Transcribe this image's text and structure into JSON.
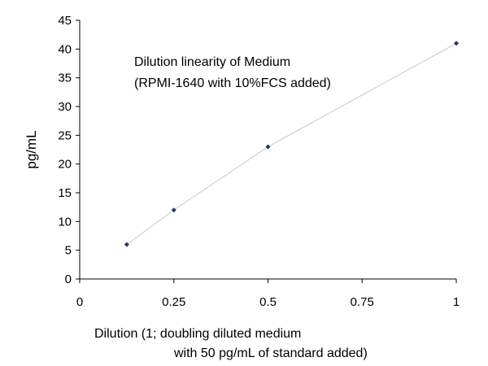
{
  "chart_data": {
    "type": "scatter",
    "annotation": [
      "Dilution linearity of Medium",
      "(RPMI-1640 with 10%FCS added)"
    ],
    "xlabel": [
      "Dilution (1; doubling diluted medium",
      "with 50 pg/mL of standard added)"
    ],
    "ylabel": "pg/mL",
    "xlim": [
      0,
      1
    ],
    "ylim": [
      0,
      45
    ],
    "xticks": [
      "0",
      "0.25",
      "0.5",
      "0.75",
      "1"
    ],
    "yticks": [
      "0",
      "5",
      "10",
      "15",
      "20",
      "25",
      "30",
      "35",
      "40",
      "45"
    ],
    "grid": false,
    "connect_points": true,
    "series": [
      {
        "x": [
          0.125,
          0.25,
          0.5,
          1
        ],
        "y": [
          6,
          12,
          23,
          41
        ],
        "marker_color": "#1f3864",
        "line_color": "#c8c8c8"
      }
    ]
  }
}
